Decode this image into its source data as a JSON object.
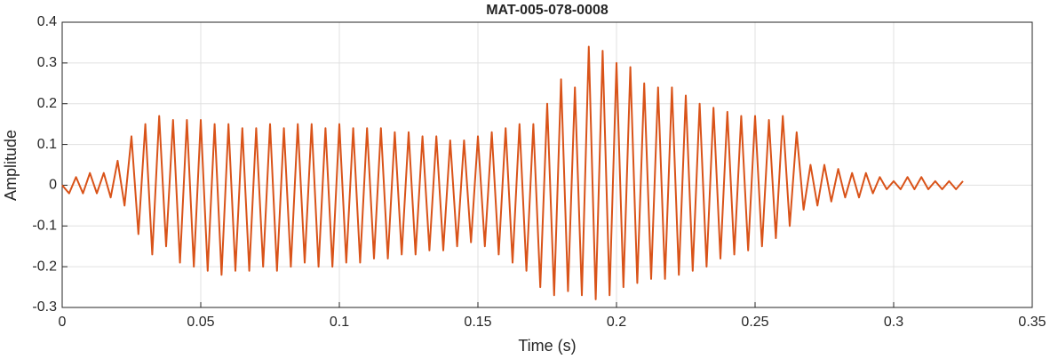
{
  "chart_data": {
    "type": "line",
    "title": "MAT-005-078-0008",
    "x_label": "Time (s)",
    "y_label": "Amplitude",
    "x": [
      0,
      0.0025,
      0.005,
      0.0075,
      0.01,
      0.0125,
      0.015,
      0.0175,
      0.02,
      0.0225,
      0.025,
      0.0275,
      0.03,
      0.0325,
      0.035,
      0.0375,
      0.04,
      0.0425,
      0.045,
      0.0475,
      0.05,
      0.0525,
      0.055,
      0.0575,
      0.06,
      0.0625,
      0.065,
      0.0675,
      0.07,
      0.0725,
      0.075,
      0.0775,
      0.08,
      0.0825,
      0.085,
      0.0875,
      0.09,
      0.0925,
      0.095,
      0.0975,
      0.1,
      0.1025,
      0.105,
      0.1075,
      0.11,
      0.1125,
      0.115,
      0.1175,
      0.12,
      0.1225,
      0.125,
      0.1275,
      0.13,
      0.1325,
      0.135,
      0.1375,
      0.14,
      0.1425,
      0.145,
      0.1475,
      0.15,
      0.1525,
      0.155,
      0.1575,
      0.16,
      0.1625,
      0.165,
      0.1675,
      0.17,
      0.1725,
      0.175,
      0.1775,
      0.18,
      0.1825,
      0.185,
      0.1875,
      0.19,
      0.1925,
      0.195,
      0.1975,
      0.2,
      0.2025,
      0.205,
      0.2075,
      0.21,
      0.2125,
      0.215,
      0.2175,
      0.22,
      0.2225,
      0.225,
      0.2275,
      0.23,
      0.2325,
      0.235,
      0.2375,
      0.24,
      0.2425,
      0.245,
      0.2475,
      0.25,
      0.2525,
      0.255,
      0.2575,
      0.26,
      0.2625,
      0.265,
      0.2675,
      0.27,
      0.2725,
      0.275,
      0.2775,
      0.28,
      0.2825,
      0.285,
      0.2875,
      0.29,
      0.2925,
      0.295,
      0.2975,
      0.3,
      0.3025,
      0.305,
      0.3075,
      0.31,
      0.3125,
      0.315,
      0.3175,
      0.32,
      0.3225,
      0.325
    ],
    "series": [
      {
        "name": "Amplitude",
        "color": "#d95319",
        "values": [
          0,
          -0.02,
          0.02,
          -0.02,
          0.03,
          -0.02,
          0.03,
          -0.03,
          0.06,
          -0.05,
          0.12,
          -0.12,
          0.15,
          -0.17,
          0.17,
          -0.15,
          0.16,
          -0.19,
          0.16,
          -0.2,
          0.16,
          -0.21,
          0.15,
          -0.22,
          0.15,
          -0.21,
          0.14,
          -0.21,
          0.14,
          -0.2,
          0.15,
          -0.21,
          0.14,
          -0.2,
          0.15,
          -0.19,
          0.15,
          -0.2,
          0.14,
          -0.2,
          0.15,
          -0.19,
          0.14,
          -0.19,
          0.14,
          -0.18,
          0.14,
          -0.18,
          0.13,
          -0.17,
          0.13,
          -0.17,
          0.12,
          -0.16,
          0.12,
          -0.16,
          0.11,
          -0.15,
          0.11,
          -0.14,
          0.12,
          -0.15,
          0.13,
          -0.17,
          0.14,
          -0.19,
          0.15,
          -0.21,
          0.15,
          -0.25,
          0.2,
          -0.27,
          0.26,
          -0.26,
          0.24,
          -0.27,
          0.34,
          -0.28,
          0.33,
          -0.27,
          0.3,
          -0.25,
          0.29,
          -0.24,
          0.25,
          -0.23,
          0.24,
          -0.23,
          0.24,
          -0.22,
          0.22,
          -0.21,
          0.2,
          -0.2,
          0.19,
          -0.18,
          0.18,
          -0.17,
          0.17,
          -0.16,
          0.17,
          -0.15,
          0.16,
          -0.13,
          0.17,
          -0.1,
          0.13,
          -0.06,
          0.05,
          -0.05,
          0.05,
          -0.04,
          0.04,
          -0.03,
          0.03,
          -0.03,
          0.03,
          -0.02,
          0.02,
          -0.01,
          0.01,
          -0.01,
          0.02,
          -0.01,
          0.02,
          -0.01,
          0.01,
          -0.01,
          0.01,
          -0.01,
          0.01
        ]
      }
    ],
    "xlim": [
      0,
      0.35
    ],
    "xticks": [
      0,
      0.05,
      0.1,
      0.15,
      0.2,
      0.25,
      0.3,
      0.35
    ],
    "ylim": [
      -0.3,
      0.4
    ],
    "yticks": [
      -0.3,
      -0.2,
      -0.1,
      0,
      0.1,
      0.2,
      0.3,
      0.4
    ],
    "grid": true
  }
}
